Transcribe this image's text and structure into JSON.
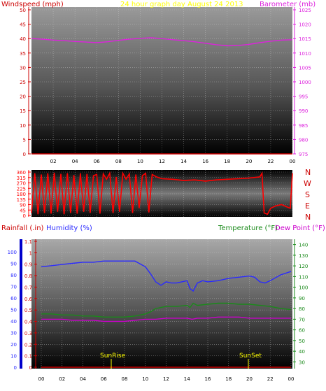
{
  "header": {
    "left_label": "Windspeed (mph)",
    "title": "24 hour graph day   August 24 2013",
    "right_label": "Barometer (mb)"
  },
  "colors": {
    "windspeed": "#cc0000",
    "title": "#ffff00",
    "barometer": "#dd22dd",
    "direction": "#ff0000",
    "rainfall": "#cc0000",
    "humidity": "#2a2aff",
    "temperature": "#1a8a1a",
    "dewpoint": "#cc00cc",
    "axis_bar": "#0000cc",
    "sun_markers": "#ffff00"
  },
  "compass": [
    "N",
    "W",
    "S",
    "E",
    "N"
  ],
  "bottom_header": {
    "rainfall_label": "Rainfall (.in)",
    "humidity_label": "Humidity (%)",
    "temperature_label": "Temperature (°F)",
    "dewpoint_label": "Dew Point (°F)"
  },
  "markers": {
    "sunrise": "SunRise",
    "sunset": "SunSet"
  },
  "chart_data": [
    {
      "type": "line",
      "name": "wind_barometer_panel",
      "x_ticks": [
        "02",
        "04",
        "06",
        "08",
        "10",
        "12",
        "14",
        "16",
        "18",
        "20",
        "22",
        "00"
      ],
      "y_left": {
        "label": "Windspeed (mph)",
        "ticks": [
          "0",
          "5",
          "10",
          "15",
          "20",
          "25",
          "30",
          "35",
          "40",
          "45",
          "50"
        ],
        "ylim": [
          0,
          50
        ]
      },
      "y_right": {
        "label": "Barometer (mb)",
        "ticks": [
          "975",
          "980",
          "985",
          "990",
          "995",
          "1000",
          "1005",
          "1010",
          "1015",
          "1020",
          "1025"
        ],
        "ylim": [
          975,
          1025
        ]
      },
      "grid": true,
      "series": [
        {
          "name": "Windspeed (mph)",
          "axis": "left",
          "x": [
            0,
            24
          ],
          "values": [
            0,
            0
          ]
        },
        {
          "name": "Barometer (mb)",
          "axis": "right",
          "x": [
            0,
            1,
            2,
            3,
            4,
            5,
            6,
            7,
            8,
            9,
            10,
            11,
            12,
            13,
            14,
            15,
            16,
            17,
            18,
            19,
            20,
            21,
            22,
            23,
            24
          ],
          "values": [
            1015.0,
            1014.8,
            1014.5,
            1014.3,
            1014.0,
            1013.8,
            1013.6,
            1013.9,
            1014.4,
            1014.8,
            1015.1,
            1015.3,
            1015.0,
            1014.6,
            1014.3,
            1013.9,
            1013.4,
            1012.9,
            1012.5,
            1012.6,
            1013.0,
            1013.6,
            1014.1,
            1014.5,
            1014.6
          ]
        }
      ]
    },
    {
      "type": "line",
      "name": "wind_direction_panel",
      "x_ticks": [
        "02",
        "04",
        "06",
        "08",
        "10",
        "12",
        "14",
        "16",
        "18",
        "20",
        "22",
        "00"
      ],
      "y_left": {
        "ticks": [
          "360",
          "315",
          "270",
          "225",
          "180",
          "135",
          "90",
          "45",
          "0"
        ],
        "ylim": [
          0,
          360
        ]
      },
      "y_right": {
        "ticks": [
          "N",
          "W",
          "S",
          "E",
          "N"
        ]
      },
      "grid": true,
      "series": [
        {
          "name": "Wind direction",
          "axis": "left",
          "x": [
            0,
            0.3,
            0.6,
            0.9,
            1.2,
            1.5,
            1.8,
            2.1,
            2.4,
            2.7,
            3.0,
            3.3,
            3.6,
            3.9,
            4.2,
            4.5,
            4.8,
            5.1,
            5.4,
            5.7,
            6.0,
            6.3,
            6.6,
            6.9,
            7.2,
            7.5,
            7.8,
            8.1,
            8.4,
            8.7,
            9.0,
            9.3,
            9.6,
            9.9,
            10.2,
            10.5,
            10.8,
            11.1,
            11.5,
            12,
            13,
            14,
            15,
            16,
            17,
            18,
            19,
            20,
            21,
            21.2,
            21.4,
            21.7,
            22,
            22.5,
            23,
            23.5,
            23.8,
            24
          ],
          "values": [
            20,
            350,
            10,
            340,
            20,
            350,
            15,
            355,
            30,
            345,
            10,
            350,
            20,
            335,
            15,
            350,
            30,
            345,
            20,
            330,
            340,
            15,
            345,
            300,
            350,
            20,
            320,
            30,
            350,
            300,
            345,
            20,
            340,
            60,
            330,
            350,
            25,
            340,
            320,
            305,
            300,
            290,
            295,
            285,
            295,
            300,
            305,
            310,
            320,
            350,
            20,
            10,
            60,
            80,
            90,
            70,
            60,
            350
          ]
        }
      ]
    },
    {
      "type": "line",
      "name": "rain_humidity_temperature_panel",
      "x_ticks": [
        "00",
        "02",
        "04",
        "06",
        "08",
        "10",
        "12",
        "14",
        "16",
        "18",
        "20",
        "22",
        "00"
      ],
      "y_left_rain": {
        "label": "Rainfall (.in)",
        "ticks": [
          "0",
          "0.1",
          "0.2",
          "0.3",
          "0.4",
          "0.5",
          "0.6",
          "0.7",
          "0.8",
          "0.9",
          "1",
          "1.1"
        ],
        "ylim": [
          0,
          1.1
        ]
      },
      "y_left_humidity": {
        "label": "Humidity (%)",
        "ticks": [
          "0",
          "10",
          "20",
          "30",
          "40",
          "50",
          "60",
          "70",
          "80",
          "90",
          "100"
        ],
        "ylim": [
          0,
          100
        ]
      },
      "y_right": {
        "label": "Temperature (°F)",
        "ticks": [
          "30",
          "40",
          "50",
          "60",
          "70",
          "80",
          "90",
          "100",
          "110",
          "120",
          "130",
          "140"
        ],
        "ylim": [
          25,
          145
        ]
      },
      "grid": true,
      "markers": [
        {
          "label": "SunRise",
          "x": 7.0
        },
        {
          "label": "SunSet",
          "x": 20.0
        }
      ],
      "series": [
        {
          "name": "Rainfall (.in)",
          "axis": "rain",
          "x": [
            0,
            24
          ],
          "values": [
            0,
            0
          ]
        },
        {
          "name": "Humidity (%)",
          "axis": "humidity",
          "x": [
            0,
            1,
            2,
            3,
            4,
            5,
            6,
            7,
            8,
            9,
            10,
            10.5,
            11,
            11.5,
            12,
            12.5,
            13,
            13.5,
            14,
            14.3,
            14.6,
            15,
            15.5,
            16,
            17,
            18,
            19,
            20,
            20.5,
            21,
            21.5,
            22,
            23,
            24
          ],
          "values": [
            87,
            88,
            89,
            90,
            91,
            91,
            92,
            92,
            92,
            92,
            87,
            81,
            74,
            71,
            74,
            73,
            73,
            74,
            75,
            68,
            66,
            73,
            75,
            74,
            75,
            77,
            78,
            79,
            78,
            74,
            73,
            75,
            80,
            83
          ]
        },
        {
          "name": "Temperature (°F)",
          "axis": "temp",
          "x": [
            0,
            1,
            2,
            3,
            4,
            5,
            6,
            7,
            8,
            9,
            10,
            10.5,
            11,
            11.5,
            12,
            13,
            14,
            14.3,
            14.6,
            15,
            16,
            17,
            18,
            19,
            20,
            21,
            22,
            23,
            24
          ],
          "values": [
            75,
            75,
            74,
            74,
            73,
            73,
            72,
            72,
            72,
            73,
            75,
            77,
            80,
            81,
            82,
            82,
            83,
            81,
            85,
            83,
            84,
            85,
            85,
            84,
            84,
            83,
            82,
            80,
            79
          ]
        },
        {
          "name": "Dew Point (°F)",
          "axis": "temp",
          "x": [
            0,
            1,
            2,
            3,
            4,
            5,
            6,
            7,
            8,
            9,
            10,
            11,
            12,
            13,
            14,
            14.5,
            15,
            16,
            17,
            18,
            19,
            20,
            21,
            22,
            23,
            24
          ],
          "values": [
            70,
            70,
            70,
            69,
            69,
            69,
            68,
            68,
            68,
            69,
            70,
            70,
            71,
            71,
            71,
            70,
            71,
            71,
            72,
            72,
            72,
            71,
            71,
            71,
            71,
            71
          ]
        }
      ]
    }
  ]
}
